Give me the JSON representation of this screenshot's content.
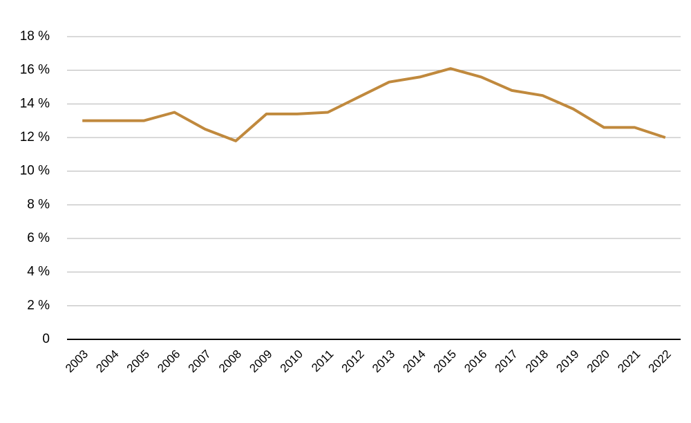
{
  "chart_data": {
    "type": "line",
    "categories": [
      "2003",
      "2004",
      "2005",
      "2006",
      "2007",
      "2008",
      "2009",
      "2010",
      "2011",
      "2012",
      "2013",
      "2014",
      "2015",
      "2016",
      "2017",
      "2018",
      "2019",
      "2020",
      "2021",
      "2022"
    ],
    "values": [
      13.0,
      13.0,
      13.0,
      13.5,
      12.5,
      11.8,
      13.4,
      13.4,
      13.5,
      14.4,
      15.3,
      15.6,
      16.1,
      15.6,
      14.8,
      14.5,
      13.7,
      12.6,
      12.6,
      12.0
    ],
    "color": "#c0893d",
    "ylim": [
      0,
      18
    ],
    "yticks": [
      0,
      {
        "value": 2,
        "label": "2 %"
      },
      {
        "value": 4,
        "label": "4 %"
      },
      {
        "value": 6,
        "label": "6 %"
      },
      {
        "value": 8,
        "label": "8 %"
      },
      {
        "value": 10,
        "label": "10 %"
      },
      {
        "value": 12,
        "label": "12 %"
      },
      {
        "value": 14,
        "label": "14 %"
      },
      {
        "value": 16,
        "label": "16 %"
      },
      {
        "value": 18,
        "label": "18 %"
      }
    ],
    "grid": true
  }
}
